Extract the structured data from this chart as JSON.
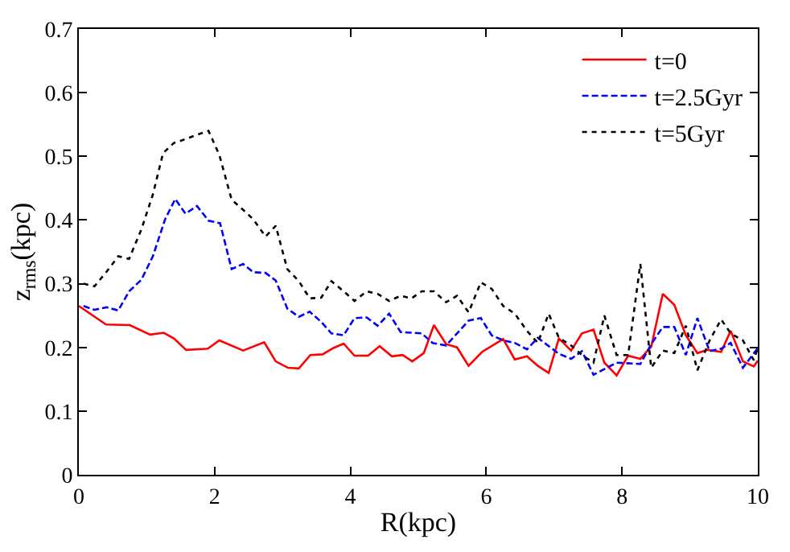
{
  "chart_data": {
    "type": "line",
    "xlabel": "R(kpc)",
    "ylabel": "z$_{rms}$(kpc)",
    "xlim": [
      0,
      10
    ],
    "xticks": [
      0,
      2,
      4,
      6,
      8,
      10
    ],
    "ylim": [
      0,
      0.7
    ],
    "yticks": [
      0,
      0.1,
      0.2,
      0.3,
      0.4,
      0.5,
      0.6,
      0.7
    ],
    "legend": "top right",
    "marker": "none",
    "series": [
      {
        "name": "t=0",
        "color": "#ff0000",
        "line_style": "solid",
        "x": [
          0.0,
          0.4,
          0.75,
          1.05,
          1.25,
          1.4,
          1.58,
          1.9,
          2.07,
          2.42,
          2.73,
          2.9,
          3.08,
          3.24,
          3.41,
          3.59,
          3.75,
          3.9,
          4.06,
          4.26,
          4.43,
          4.61,
          4.77,
          4.91,
          5.08,
          5.23,
          5.41,
          5.57,
          5.74,
          5.94,
          6.25,
          6.42,
          6.6,
          6.76,
          6.92,
          7.07,
          7.25,
          7.41,
          7.58,
          7.74,
          7.92,
          8.09,
          8.27,
          8.43,
          8.6,
          8.77,
          8.94,
          9.11,
          9.26,
          9.46,
          9.6,
          9.78,
          9.94,
          10.0
        ],
        "values": [
          0.265,
          0.236,
          0.235,
          0.22,
          0.223,
          0.214,
          0.196,
          0.198,
          0.211,
          0.195,
          0.208,
          0.178,
          0.168,
          0.167,
          0.188,
          0.189,
          0.199,
          0.206,
          0.187,
          0.187,
          0.202,
          0.186,
          0.188,
          0.178,
          0.191,
          0.235,
          0.205,
          0.2,
          0.171,
          0.193,
          0.213,
          0.181,
          0.186,
          0.171,
          0.16,
          0.214,
          0.195,
          0.222,
          0.228,
          0.176,
          0.156,
          0.187,
          0.182,
          0.201,
          0.284,
          0.267,
          0.219,
          0.191,
          0.196,
          0.193,
          0.226,
          0.178,
          0.17,
          0.179
        ]
      },
      {
        "name": "t=2.5Gyr",
        "color": "#0000ff",
        "line_style": "dashed",
        "x": [
          0.07,
          0.23,
          0.41,
          0.58,
          0.74,
          0.92,
          1.09,
          1.27,
          1.42,
          1.57,
          1.74,
          1.91,
          2.08,
          2.25,
          2.42,
          2.57,
          2.75,
          2.9,
          3.07,
          3.24,
          3.4,
          3.57,
          3.72,
          3.9,
          4.06,
          4.24,
          4.4,
          4.57,
          4.74,
          5.05,
          5.21,
          5.41,
          5.74,
          5.92,
          6.08,
          6.25,
          6.42,
          6.6,
          6.76,
          7.07,
          7.25,
          7.41,
          7.58,
          7.92,
          8.27,
          8.43,
          8.6,
          8.77,
          8.94,
          9.11,
          9.29,
          9.46,
          9.6,
          9.78,
          10.0
        ],
        "values": [
          0.265,
          0.259,
          0.263,
          0.258,
          0.288,
          0.306,
          0.343,
          0.401,
          0.433,
          0.41,
          0.422,
          0.399,
          0.395,
          0.323,
          0.331,
          0.318,
          0.317,
          0.305,
          0.261,
          0.248,
          0.256,
          0.24,
          0.222,
          0.219,
          0.246,
          0.247,
          0.234,
          0.253,
          0.224,
          0.222,
          0.207,
          0.203,
          0.242,
          0.246,
          0.219,
          0.211,
          0.207,
          0.197,
          0.215,
          0.19,
          0.182,
          0.194,
          0.157,
          0.176,
          0.174,
          0.205,
          0.232,
          0.232,
          0.188,
          0.246,
          0.194,
          0.198,
          0.207,
          0.168,
          0.199
        ]
      },
      {
        "name": "t=5Gyr",
        "color": "#000000",
        "line_style": "dotted",
        "x": [
          0.07,
          0.23,
          0.41,
          0.58,
          0.74,
          0.92,
          1.09,
          1.24,
          1.4,
          1.57,
          1.74,
          1.91,
          2.07,
          2.25,
          2.42,
          2.57,
          2.75,
          2.9,
          3.07,
          3.24,
          3.4,
          3.57,
          3.72,
          3.9,
          4.06,
          4.24,
          4.4,
          4.57,
          4.74,
          4.9,
          5.05,
          5.23,
          5.41,
          5.57,
          5.74,
          5.92,
          6.08,
          6.25,
          6.42,
          6.6,
          6.76,
          6.92,
          7.07,
          7.25,
          7.41,
          7.58,
          7.74,
          7.92,
          8.09,
          8.27,
          8.43,
          8.6,
          8.77,
          8.94,
          9.11,
          9.29,
          9.46,
          9.6,
          9.78,
          9.94,
          10.0
        ],
        "values": [
          0.3,
          0.296,
          0.319,
          0.343,
          0.339,
          0.385,
          0.44,
          0.505,
          0.521,
          0.527,
          0.534,
          0.54,
          0.502,
          0.432,
          0.416,
          0.401,
          0.374,
          0.391,
          0.323,
          0.304,
          0.277,
          0.278,
          0.304,
          0.288,
          0.273,
          0.288,
          0.284,
          0.273,
          0.281,
          0.277,
          0.288,
          0.288,
          0.271,
          0.281,
          0.255,
          0.302,
          0.292,
          0.265,
          0.253,
          0.226,
          0.207,
          0.253,
          0.215,
          0.203,
          0.188,
          0.176,
          0.25,
          0.188,
          0.188,
          0.331,
          0.168,
          0.195,
          0.191,
          0.234,
          0.164,
          0.211,
          0.244,
          0.222,
          0.211,
          0.18,
          0.199
        ]
      }
    ]
  }
}
